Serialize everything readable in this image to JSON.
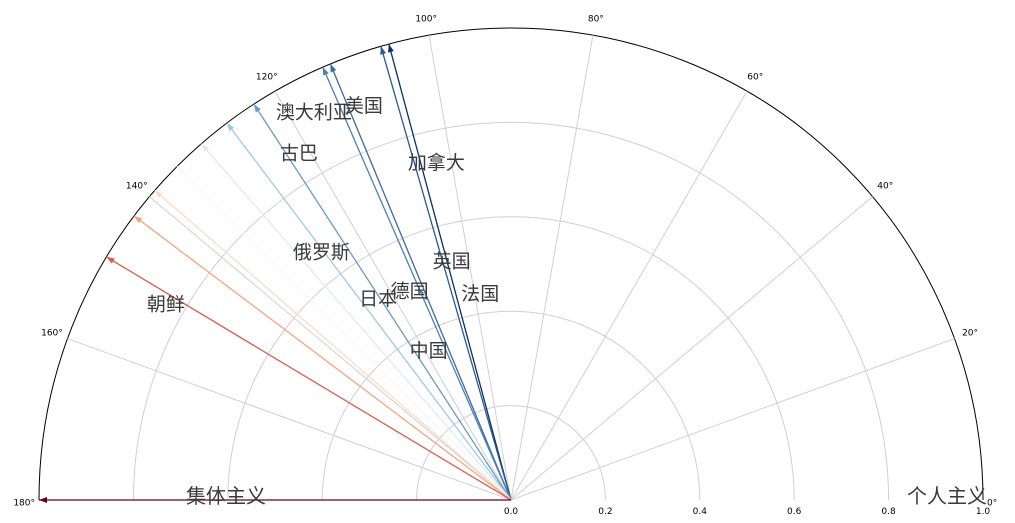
{
  "chart_data": {
    "type": "polar-arrows",
    "theta_range_deg": [
      0,
      180
    ],
    "r_range": [
      0,
      1.0
    ],
    "grid": true,
    "theta_ticks": [
      "0°",
      "20°",
      "40°",
      "60°",
      "80°",
      "100°",
      "120°",
      "140°",
      "160°",
      "180°"
    ],
    "r_ticks": [
      "0.0",
      "0.2",
      "0.4",
      "0.6",
      "0.8",
      "1.0"
    ],
    "axis_end_labels": {
      "left": "集体主义",
      "right": "个人主义"
    },
    "arrows": [
      {
        "angle_deg": 180,
        "color": "#67001f"
      },
      {
        "angle_deg": 149,
        "color": "#d6604d"
      },
      {
        "angle_deg": 143,
        "color": "#f4a582"
      },
      {
        "angle_deg": 139,
        "color": "#fddbc7"
      },
      {
        "angle_deg": 135,
        "color": "#f7f7f7"
      },
      {
        "angle_deg": 131,
        "color": "#deebf7"
      },
      {
        "angle_deg": 127,
        "color": "#9ecae1"
      },
      {
        "angle_deg": 123,
        "color": "#6b9ac4"
      },
      {
        "angle_deg": 113.5,
        "color": "#4f7fb0"
      },
      {
        "angle_deg": 112.5,
        "color": "#3b6aa0"
      },
      {
        "angle_deg": 106,
        "color": "#2b5a90"
      },
      {
        "angle_deg": 105,
        "color": "#08306b"
      }
    ],
    "labels": [
      {
        "text": "朝鲜",
        "r": 0.84,
        "angle_deg": 150.5
      },
      {
        "text": "俄罗斯",
        "r": 0.66,
        "angle_deg": 127.5
      },
      {
        "text": "澳大利亚",
        "r": 0.92,
        "angle_deg": 117
      },
      {
        "text": "古巴",
        "r": 0.86,
        "angle_deg": 121.5
      },
      {
        "text": "美国",
        "r": 0.89,
        "angle_deg": 110.5
      },
      {
        "text": "加拿大",
        "r": 0.73,
        "angle_deg": 102.5
      },
      {
        "text": "英国",
        "r": 0.52,
        "angle_deg": 104
      },
      {
        "text": "日本",
        "r": 0.51,
        "angle_deg": 123.5
      },
      {
        "text": "德国",
        "r": 0.49,
        "angle_deg": 116
      },
      {
        "text": "法国",
        "r": 0.44,
        "angle_deg": 98.5
      },
      {
        "text": "中国",
        "r": 0.36,
        "angle_deg": 119
      }
    ]
  }
}
